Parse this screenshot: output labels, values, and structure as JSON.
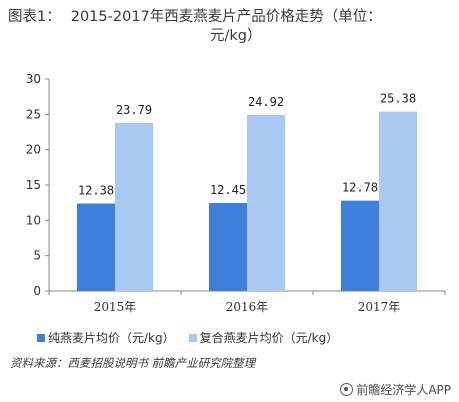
{
  "header": {
    "prefix": "图表1：",
    "title_line1": "2015-2017年西麦燕麦片产品价格走势（单位：",
    "title_line2": "元/kg）"
  },
  "chart_data": {
    "type": "bar",
    "categories": [
      "2015年",
      "2016年",
      "2017年"
    ],
    "series": [
      {
        "name": "纯燕麦片均价（元/kg）",
        "values": [
          12.38,
          12.45,
          12.78
        ],
        "color": "#3f7fdc"
      },
      {
        "name": "复合燕麦片均价（元/kg）",
        "values": [
          23.79,
          24.92,
          25.38
        ],
        "color": "#a9c9f2"
      }
    ],
    "value_labels": [
      [
        "12.38",
        "12.45",
        "12.78"
      ],
      [
        "23.79",
        "24.92",
        "25.38"
      ]
    ],
    "yticks": [
      "0",
      "5",
      "10",
      "15",
      "20",
      "25",
      "30"
    ],
    "ylim": [
      0,
      30
    ],
    "legend_position": "bottom-left",
    "grid": false
  },
  "footer": {
    "source": "资料来源：西麦招股说明书 前瞻产业研究院整理",
    "brand": "前瞻经济学人APP"
  }
}
